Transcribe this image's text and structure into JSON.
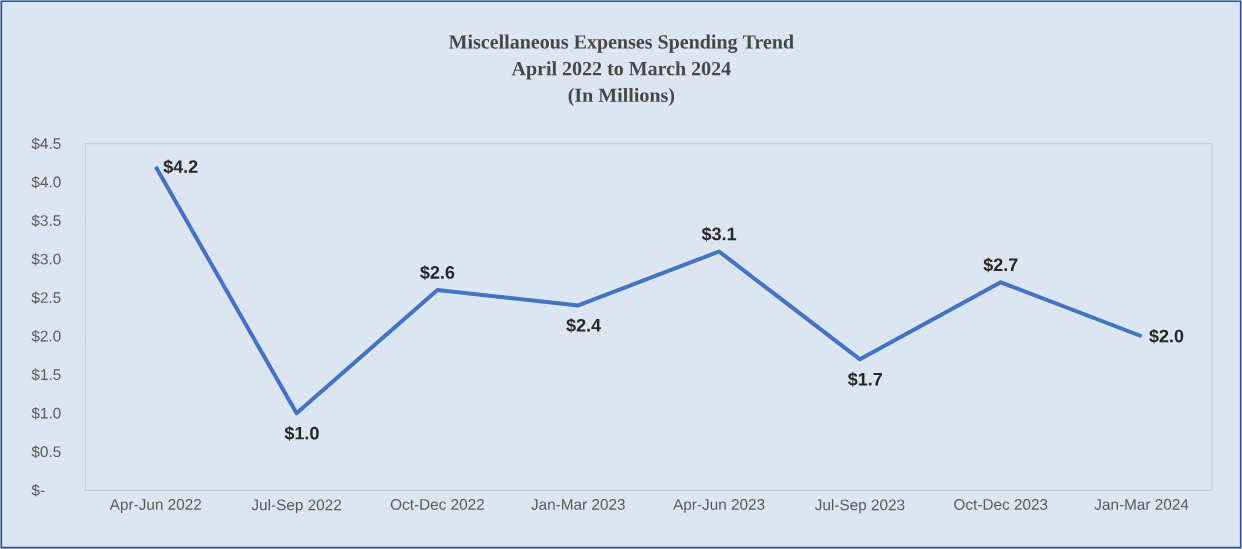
{
  "chart_data": {
    "type": "line",
    "title": "Miscellaneous Expenses Spending Trend",
    "subtitle": "April 2022 to March 2024",
    "annotations": [
      "(In Millions)"
    ],
    "categories": [
      "Apr-Jun 2022",
      "Jul-Sep 2022",
      "Oct-Dec 2022",
      "Jan-Mar 2023",
      "Apr-Jun 2023",
      "Jul-Sep 2023",
      "Oct-Dec 2023",
      "Jan-Mar 2024"
    ],
    "values": [
      4.2,
      1.0,
      2.6,
      2.4,
      3.1,
      1.7,
      2.7,
      2.0
    ],
    "value_labels": [
      "$4.2",
      "$1.0",
      "$2.6",
      "$2.4",
      "$3.1",
      "$1.7",
      "$2.7",
      "$2.0"
    ],
    "color": "#4472c4",
    "ylim": [
      0,
      4.5
    ],
    "yticks": [
      {
        "value": 0,
        "label": "$-"
      },
      {
        "value": 0.5,
        "label": "$0.5"
      },
      {
        "value": 1.0,
        "label": "$1.0"
      },
      {
        "value": 1.5,
        "label": "$1.5"
      },
      {
        "value": 2.0,
        "label": "$2.0"
      },
      {
        "value": 2.5,
        "label": "$2.5"
      },
      {
        "value": 3.0,
        "label": "$3.0"
      },
      {
        "value": 3.5,
        "label": "$3.5"
      },
      {
        "value": 4.0,
        "label": "$4.0"
      },
      {
        "value": 4.5,
        "label": "$4.5"
      }
    ],
    "grid": "y",
    "marker": "none",
    "line_style": "solid"
  }
}
